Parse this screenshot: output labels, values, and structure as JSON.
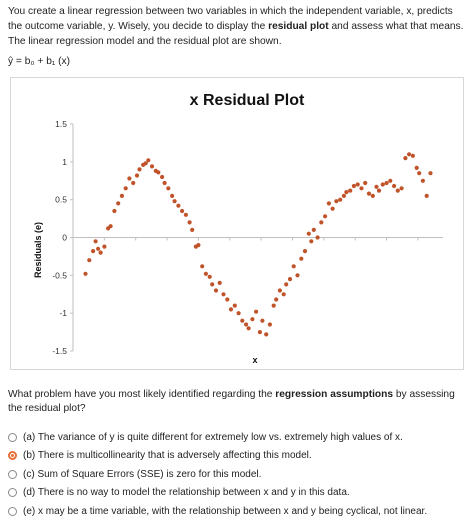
{
  "intro": {
    "part1": "You create a linear regression between two variables in which the independent variable, x, predicts the outcome variable, y. Wisely, you decide to display the ",
    "bold1": "residual plot",
    "part2": " and assess what that means. The linear regression model and the residual plot are shown."
  },
  "equation": "ŷ = b₀ + b₁ (x)",
  "chart_data": {
    "type": "scatter",
    "title": "x Residual Plot",
    "xlabel": "x",
    "ylabel": "Residuals (e)",
    "ylim": [
      -1.5,
      1.5
    ],
    "yticks": [
      "1.5",
      "1",
      "0.5",
      "0",
      "-0.5",
      "-1",
      "-1.5"
    ],
    "ytick_values": [
      1.5,
      1,
      0.5,
      0,
      -0.5,
      -1,
      -1.5
    ],
    "grid": false,
    "legend": "none",
    "point_color": "#c0532a",
    "x": [
      1.0,
      1.3,
      1.6,
      1.8,
      2.0,
      2.2,
      2.5,
      2.8,
      3.0,
      3.3,
      3.6,
      3.9,
      4.2,
      4.5,
      4.8,
      5.1,
      5.3,
      5.6,
      5.8,
      6.0,
      6.3,
      6.6,
      6.8,
      7.1,
      7.3,
      7.6,
      7.9,
      8.1,
      8.4,
      8.7,
      9.0,
      9.3,
      9.5,
      9.8,
      10.0,
      10.3,
      10.6,
      10.9,
      11.1,
      11.4,
      11.7,
      12.0,
      12.3,
      12.6,
      12.9,
      13.2,
      13.5,
      13.8,
      14.0,
      14.3,
      14.6,
      14.9,
      15.1,
      15.4,
      15.7,
      16.0,
      16.2,
      16.5,
      16.8,
      17.0,
      17.3,
      17.6,
      17.9,
      18.2,
      18.5,
      18.8,
      19.0,
      19.2,
      19.5,
      19.8,
      20.1,
      20.4,
      20.7,
      21.0,
      21.3,
      21.6,
      21.8,
      22.1,
      22.4,
      22.7,
      23.0,
      23.3,
      23.6,
      23.9,
      24.2,
      24.4,
      24.7,
      25.0,
      25.3,
      25.6,
      25.9,
      26.2,
      26.5,
      26.8,
      27.1,
      27.4,
      27.6,
      27.9,
      28.2,
      28.5
    ],
    "y": [
      -0.48,
      -0.3,
      -0.18,
      -0.05,
      -0.15,
      -0.2,
      -0.12,
      0.12,
      0.15,
      0.35,
      0.45,
      0.55,
      0.65,
      0.78,
      0.72,
      0.82,
      0.9,
      0.96,
      0.98,
      1.02,
      0.94,
      0.88,
      0.86,
      0.8,
      0.72,
      0.65,
      0.55,
      0.48,
      0.42,
      0.35,
      0.3,
      0.2,
      0.1,
      -0.12,
      -0.1,
      -0.38,
      -0.48,
      -0.52,
      -0.62,
      -0.7,
      -0.6,
      -0.75,
      -0.82,
      -0.95,
      -0.9,
      -1.0,
      -1.1,
      -1.15,
      -1.2,
      -1.08,
      -0.98,
      -1.25,
      -1.1,
      -1.28,
      -1.15,
      -0.9,
      -0.82,
      -0.7,
      -0.75,
      -0.62,
      -0.55,
      -0.38,
      -0.5,
      -0.28,
      -0.18,
      0.05,
      -0.05,
      0.1,
      0.0,
      0.2,
      0.28,
      0.45,
      0.38,
      0.48,
      0.5,
      0.55,
      0.6,
      0.62,
      0.68,
      0.7,
      0.65,
      0.72,
      0.58,
      0.55,
      0.67,
      0.62,
      0.7,
      0.72,
      0.75,
      0.68,
      0.62,
      0.65,
      1.05,
      1.1,
      1.08,
      0.92,
      0.85,
      0.75,
      0.55,
      0.85
    ]
  },
  "question": {
    "part1": "What problem have you most likely identified regarding the ",
    "bold": "regression assumptions",
    "part2": " by assessing the residual plot?"
  },
  "options": [
    {
      "label": "(a) The variance of y is quite different for extremely low vs. extremely high values of x.",
      "selected": false
    },
    {
      "label": "(b) There is multicollinearity that is adversely affecting this model.",
      "selected": true
    },
    {
      "label": "(c) Sum of Square Errors (SSE) is zero for this model.",
      "selected": false
    },
    {
      "label": "(d) There is no way to model the relationship between x and y in this data.",
      "selected": false
    },
    {
      "label": "(e) x may be a time variable, with the relationship between x and y being cyclical, not linear.",
      "selected": false
    }
  ],
  "colors": {
    "accent": "#e8703a",
    "points": "#c0532a"
  }
}
